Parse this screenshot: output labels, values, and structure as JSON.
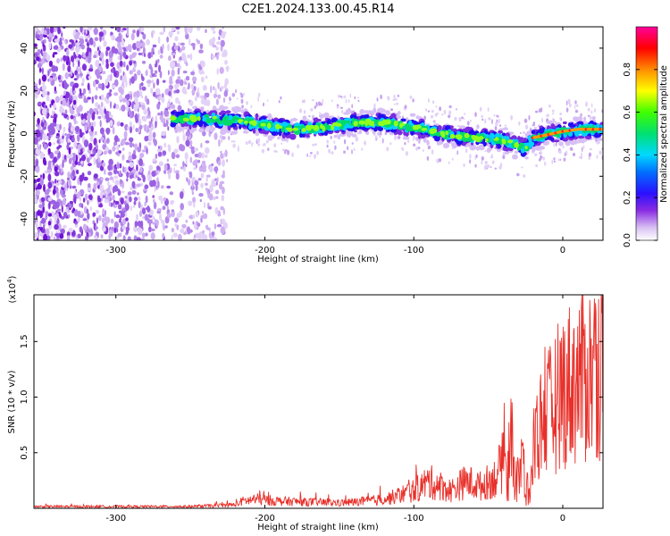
{
  "title": "C2E1.2024.133.00.45.R14",
  "chart_data": [
    {
      "type": "heatmap",
      "description_of_content": "Spectrogram: spectral amplitude vs frequency offset along height of straight line",
      "xlabel": "Height of straight line (km)",
      "ylabel": "Frequency (Hz)",
      "xlim": [
        -355,
        27
      ],
      "ylim": [
        -50,
        50
      ],
      "xticks": [
        -300,
        -200,
        -100,
        0
      ],
      "yticks": [
        -40,
        -20,
        0,
        20,
        40
      ],
      "colorbar": {
        "label": "Normalized spectral amplitude",
        "range": [
          0.0,
          1.0
        ],
        "ticks": [
          0.0,
          0.2,
          0.4,
          0.6,
          0.8
        ],
        "colormap": [
          "#ffffff",
          "#c8a8f0",
          "#7b20d8",
          "#3010ff",
          "#00c8ff",
          "#00e070",
          "#90ff00",
          "#ffe000",
          "#ff8000",
          "#ff0000",
          "#ff0090"
        ]
      },
      "ridge": {
        "x": [
          -262,
          -240,
          -220,
          -200,
          -180,
          -160,
          -140,
          -120,
          -100,
          -80,
          -60,
          -40,
          -25,
          -20,
          0,
          10,
          27
        ],
        "freq": [
          7,
          7,
          6,
          4,
          2,
          3,
          5,
          5,
          3,
          0,
          -2,
          -3,
          -7,
          -2,
          1,
          2,
          2
        ]
      },
      "noise_region_x": [
        -355,
        -225
      ]
    },
    {
      "type": "line",
      "xlabel": "Height of straight line (km)",
      "ylabel": "SNR (10 * v/v)",
      "y_multiplier": "(x10",
      "y_multiplier_exp": "4",
      "y_multiplier_close": ")",
      "xlim": [
        -355,
        27
      ],
      "ylim": [
        0,
        1.92
      ],
      "xticks": [
        -300,
        -200,
        -100,
        0
      ],
      "yticks": [
        0.5,
        1.0,
        1.5
      ],
      "color": "#e8302a",
      "series": [
        {
          "x": [
            -355,
            -300,
            -250,
            -220,
            -215,
            -205,
            -190,
            -170,
            -150,
            -130,
            -115,
            -100,
            -90,
            -82,
            -75,
            -65,
            -55,
            -45,
            -38,
            -33,
            -30,
            -28,
            -25,
            -22,
            -19,
            -15,
            -10,
            -5,
            0,
            5,
            10,
            15,
            20,
            25,
            27
          ],
          "y": [
            0.02,
            0.02,
            0.02,
            0.04,
            0.08,
            0.1,
            0.08,
            0.07,
            0.06,
            0.08,
            0.12,
            0.2,
            0.3,
            0.25,
            0.2,
            0.3,
            0.25,
            0.35,
            0.6,
            0.9,
            0.8,
            0.7,
            0.4,
            0.15,
            0.8,
            0.95,
            1.05,
            1.2,
            1.35,
            1.4,
            1.45,
            1.5,
            1.55,
            1.62,
            1.65
          ]
        }
      ]
    }
  ]
}
